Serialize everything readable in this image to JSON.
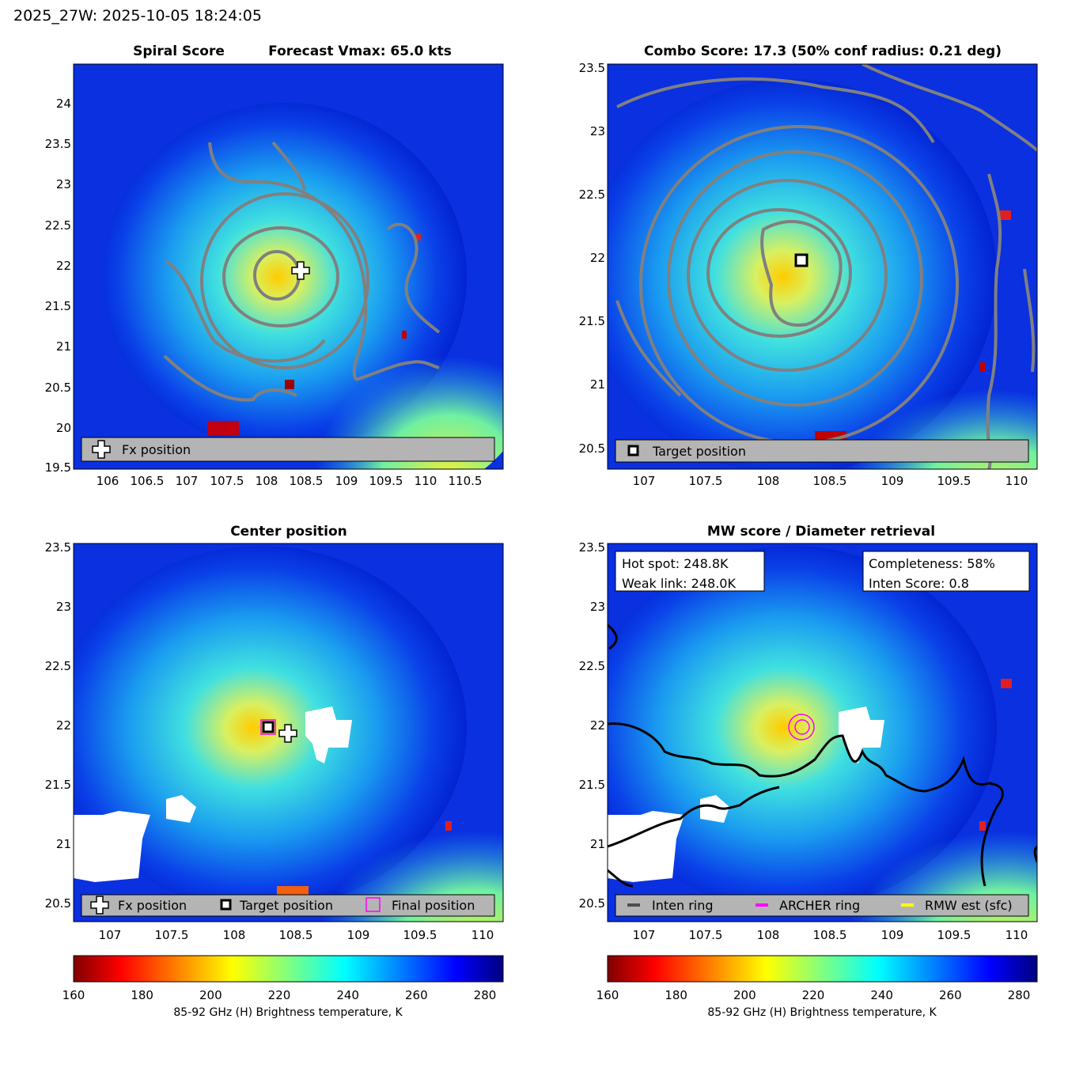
{
  "header": {
    "title": "2025_27W: 2025-10-05 18:24:05"
  },
  "panels": [
    {
      "id": "spiral",
      "title_left": "Spiral Score",
      "title_right": "Forecast Vmax: 65.0 kts",
      "xticks": [
        "106",
        "106.5",
        "107",
        "107.5",
        "108",
        "108.5",
        "109",
        "109.5",
        "110",
        "110.5"
      ],
      "yticks": [
        "19.5",
        "20",
        "20.5",
        "21",
        "21.5",
        "22",
        "22.5",
        "23",
        "23.5",
        "24"
      ],
      "legend": [
        {
          "icon": "cross-icon",
          "label": "Fx position"
        }
      ]
    },
    {
      "id": "combo",
      "title": "Combo Score: 17.3  (50% conf radius: 0.21 deg)",
      "xticks": [
        "107",
        "107.5",
        "108",
        "108.5",
        "109",
        "109.5",
        "110"
      ],
      "yticks": [
        "20.5",
        "21",
        "21.5",
        "22",
        "22.5",
        "23",
        "23.5"
      ],
      "legend": [
        {
          "icon": "square-marker-icon",
          "label": "Target position"
        }
      ]
    },
    {
      "id": "center",
      "title": "Center position",
      "xticks": [
        "107",
        "107.5",
        "108",
        "108.5",
        "109",
        "109.5",
        "110"
      ],
      "yticks": [
        "20.5",
        "21",
        "21.5",
        "22",
        "22.5",
        "23",
        "23.5"
      ],
      "legend": [
        {
          "icon": "cross-icon",
          "label": "Fx position"
        },
        {
          "icon": "square-marker-icon",
          "label": "Target position"
        },
        {
          "icon": "magenta-square-icon",
          "label": "Final position"
        }
      ]
    },
    {
      "id": "mw",
      "title": "MW score / Diameter retrieval",
      "xticks": [
        "107",
        "107.5",
        "108",
        "108.5",
        "109",
        "109.5",
        "110"
      ],
      "yticks": [
        "20.5",
        "21",
        "21.5",
        "22",
        "22.5",
        "23",
        "23.5"
      ],
      "info_left": [
        "Hot spot: 248.8K",
        "Weak link: 248.0K"
      ],
      "info_right": [
        "Completeness: 58%",
        "Inten Score: 0.8"
      ],
      "legend": [
        {
          "icon": "gray-line-icon",
          "label": "Inten ring",
          "color": "#4d4d4d"
        },
        {
          "icon": "magenta-line-icon",
          "label": "ARCHER ring",
          "color": "#ff00ff"
        },
        {
          "icon": "yellow-line-icon",
          "label": "RMW est (sfc)",
          "color": "#ffff00"
        }
      ]
    }
  ],
  "colorbar": {
    "ticks": [
      "160",
      "180",
      "200",
      "220",
      "240",
      "260",
      "280"
    ],
    "label": "85-92 GHz (H) Brightness temperature, K",
    "colors": [
      "#800000",
      "#ff0000",
      "#ff8000",
      "#ffff00",
      "#80ff80",
      "#00ffff",
      "#0080ff",
      "#0000ff",
      "#000080"
    ]
  }
}
